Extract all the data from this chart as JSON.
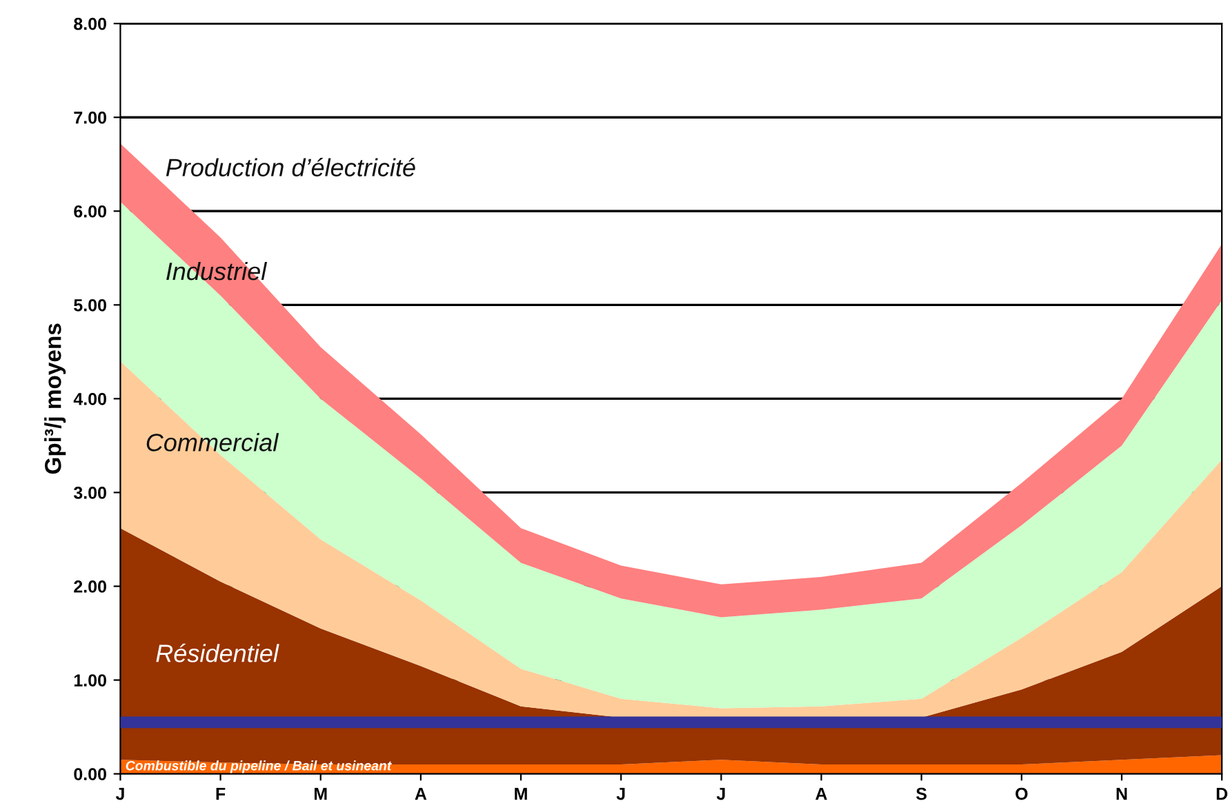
{
  "chart_data": {
    "type": "area",
    "stacked": true,
    "ylabel": "Gpi³/j moyens",
    "categories": [
      "J",
      "F",
      "M",
      "A",
      "M",
      "J",
      "J",
      "A",
      "S",
      "O",
      "N",
      "D"
    ],
    "series": [
      {
        "name": "Combustible du pipeline / Bail et usineant",
        "color": "#ff6600",
        "values": [
          0.15,
          0.12,
          0.1,
          0.1,
          0.1,
          0.1,
          0.15,
          0.1,
          0.1,
          0.1,
          0.15,
          0.2
        ]
      },
      {
        "name": "Résidentiel",
        "color": "#993300",
        "values": [
          2.47,
          1.93,
          1.45,
          1.05,
          0.62,
          0.5,
          0.43,
          0.48,
          0.5,
          0.8,
          1.15,
          1.8
        ]
      },
      {
        "name": "Commercial",
        "color": "#ffcc99",
        "values": [
          1.78,
          1.35,
          0.95,
          0.7,
          0.4,
          0.2,
          0.12,
          0.14,
          0.2,
          0.55,
          0.85,
          1.35
        ]
      },
      {
        "name": "Industriel",
        "color": "#ccffcc",
        "values": [
          1.7,
          1.7,
          1.5,
          1.3,
          1.13,
          1.07,
          0.97,
          1.03,
          1.07,
          1.2,
          1.35,
          1.7
        ]
      },
      {
        "name": "Production d’électricité",
        "color": "#ff8080",
        "values": [
          0.62,
          0.62,
          0.55,
          0.47,
          0.37,
          0.35,
          0.35,
          0.35,
          0.38,
          0.45,
          0.5,
          0.6
        ]
      }
    ],
    "ref_lines": [
      {
        "axis": "y",
        "value": 0.55,
        "color": "#333399"
      }
    ],
    "ylim": [
      0,
      8
    ],
    "yticks": [
      {
        "value": 0,
        "label": "0.00"
      },
      {
        "value": 1,
        "label": "1.00"
      },
      {
        "value": 2,
        "label": "2.00"
      },
      {
        "value": 3,
        "label": "3.00"
      },
      {
        "value": 4,
        "label": "4.00"
      },
      {
        "value": 5,
        "label": "5.00"
      },
      {
        "value": 6,
        "label": "6.00"
      },
      {
        "value": 7,
        "label": "7.00"
      },
      {
        "value": 8,
        "label": "8.00"
      }
    ],
    "grid": "y",
    "legend": false
  }
}
